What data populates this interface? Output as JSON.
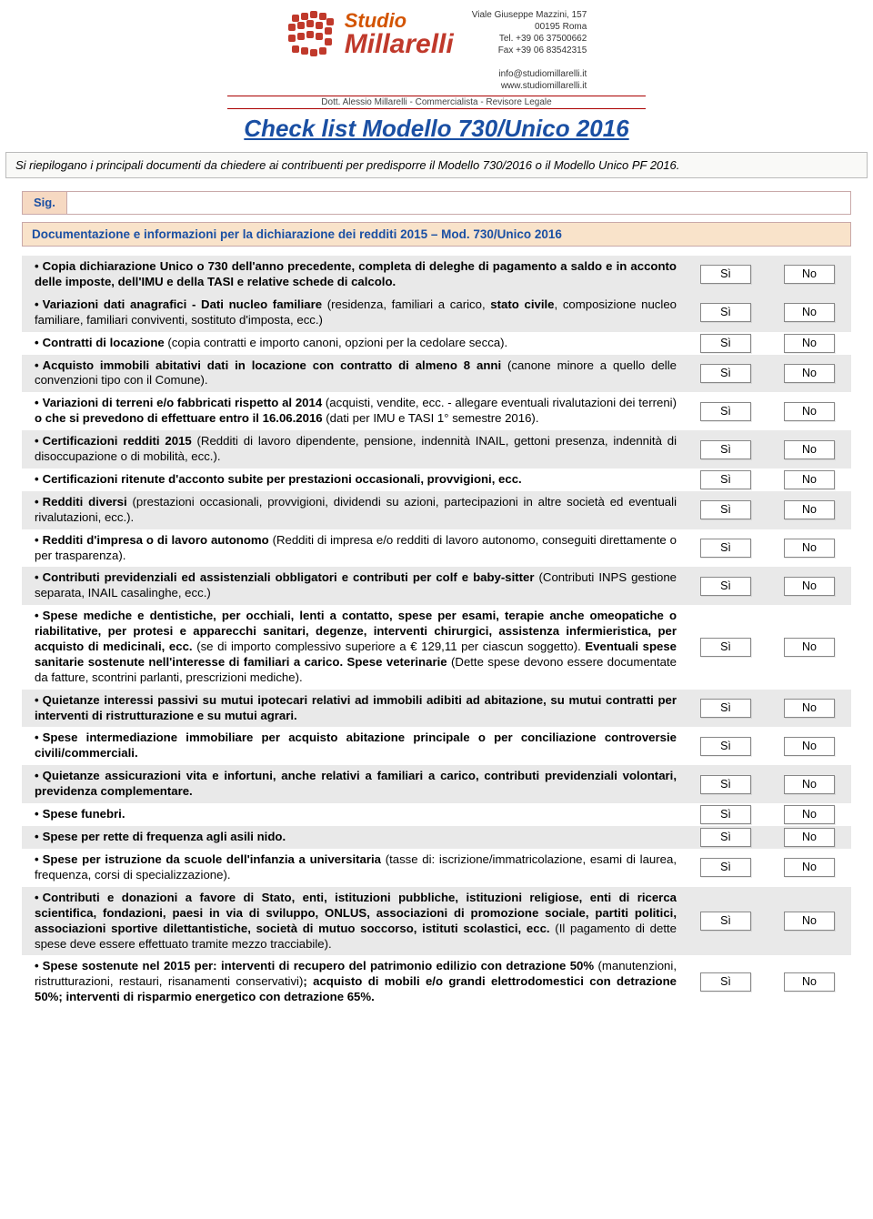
{
  "header": {
    "logo_line1": "Studio",
    "logo_line2": "Millarelli",
    "contact_lines": [
      "Viale Giuseppe Mazzini, 157",
      "00195 Roma",
      "Tel. +39 06 37500662",
      "Fax +39 06 83542315",
      "",
      "info@studiomillarelli.it",
      "www.studiomillarelli.it"
    ],
    "subline": "Dott. Alessio Millarelli - Commercialista - Revisore Legale"
  },
  "title": "Check list Modello 730/Unico 2016",
  "intro": "Si riepilogano i principali documenti da chiedere ai contribuenti per predisporre il Modello 730/2016 o il Modello Unico PF 2016.",
  "sig_label": "Sig.",
  "section_header": "Documentazione e informazioni per la dichiarazione dei redditi 2015 – Mod. 730/Unico 2016",
  "yes": "Sì",
  "no": "No",
  "colors": {
    "title": "#1a4fa3",
    "header_bg": "#f9e3ca",
    "sig_bg": "#f6d9c2",
    "shade": "#e9e9e9",
    "border": "#c9a9a9",
    "logo_orange": "#d35400",
    "logo_red": "#c0392b"
  },
  "rows": [
    {
      "shaded": true,
      "html": "<b>Copia dichiarazione Unico o 730 dell'anno precedente, completa di deleghe di pagamento a saldo e in acconto delle imposte, dell'IMU e della TASI e relative schede di calcolo.</b>"
    },
    {
      "shaded": true,
      "html": "<b>Variazioni dati anagrafici - Dati nucleo familiare</b> (residenza, familiari a carico, <b>stato civile</b>, composizione nucleo familiare, familiari conviventi, sostituto d'imposta, ecc.)"
    },
    {
      "shaded": false,
      "html": "<b>Contratti di locazione</b> (copia contratti e importo canoni, opzioni per la cedolare secca)."
    },
    {
      "shaded": true,
      "html": "<b>Acquisto immobili abitativi dati in locazione con contratto di almeno 8 anni</b> (canone minore a quello delle convenzioni tipo con il Comune)."
    },
    {
      "shaded": false,
      "html": "<b>Variazioni di terreni e/o fabbricati rispetto al 2014</b> (acquisti, vendite, ecc. - allegare eventuali rivalutazioni dei terreni) <b>o che si prevedono di effettuare entro il 16.06.2016</b> (dati per IMU e TASI 1° semestre 2016)."
    },
    {
      "shaded": true,
      "html": "<b>Certificazioni redditi 2015</b> (Redditi di lavoro dipendente, pensione, indennità INAIL, gettoni presenza,  indennità di disoccupazione o di mobilità, ecc.)."
    },
    {
      "shaded": false,
      "html": "<b>Certificazioni ritenute d'acconto subite per prestazioni occasionali, provvigioni, ecc.</b>"
    },
    {
      "shaded": true,
      "html": "<b>Redditi diversi</b> (prestazioni occasionali, provvigioni, dividendi su azioni, partecipazioni in altre società ed eventuali rivalutazioni, ecc.)."
    },
    {
      "shaded": false,
      "html": "<b>Redditi d'impresa o di lavoro autonomo</b> (Redditi di impresa e/o redditi di lavoro autonomo, conseguiti direttamente o per trasparenza)."
    },
    {
      "shaded": true,
      "html": "<b>Contributi previdenziali ed assistenziali obbligatori e contributi per colf e baby-sitter</b> (Contributi INPS gestione separata, INAIL casalinghe, ecc.)"
    },
    {
      "shaded": false,
      "html": "<b>Spese mediche e dentistiche, per occhiali, lenti a contatto, spese per esami, terapie anche omeopatiche o riabilitative, per protesi e apparecchi sanitari, degenze, interventi chirurgici, assistenza infermieristica, per acquisto di medicinali, ecc.</b> (se di importo complessivo superiore a € 129,11 per ciascun soggetto). <b>Eventuali spese sanitarie sostenute nell'interesse di familiari a carico. Spese veterinarie</b> (Dette spese devono essere documentate da fatture, scontrini parlanti, prescrizioni mediche)."
    },
    {
      "shaded": true,
      "html": "<b>Quietanze interessi passivi su mutui ipotecari relativi ad immobili adibiti ad abitazione, su mutui contratti per interventi di ristrutturazione e su mutui agrari.</b>"
    },
    {
      "shaded": false,
      "html": "<b>Spese intermediazione immobiliare per acquisto abitazione principale o per conciliazione controversie civili/commerciali.</b>"
    },
    {
      "shaded": true,
      "html": "<b>Quietanze assicurazioni vita e infortuni, anche relativi a familiari a carico, contributi previdenziali volontari, previdenza complementare.</b>"
    },
    {
      "shaded": false,
      "html": "<b>Spese funebri.</b>"
    },
    {
      "shaded": true,
      "html": "<b>Spese per rette di frequenza agli asili nido.</b>"
    },
    {
      "shaded": false,
      "html": "<b>Spese per istruzione da scuole dell'infanzia a universitaria</b> (tasse di: iscrizione/immatricolazione, esami di laurea, frequenza, corsi di specializzazione)."
    },
    {
      "shaded": true,
      "html": "<b>Contributi e donazioni a favore di Stato, enti, istituzioni pubbliche, istituzioni religiose, enti di ricerca scientifica, fondazioni, paesi in via di sviluppo, ONLUS, associazioni di promozione sociale, partiti politici, associazioni sportive dilettantistiche, società di mutuo soccorso, istituti scolastici, ecc.</b> (Il pagamento di dette spese deve essere effettuato tramite mezzo tracciabile)."
    },
    {
      "shaded": false,
      "html": "<b>Spese sostenute nel 2015 per: interventi di recupero del patrimonio edilizio con detrazione 50%</b> (manutenzioni, ristrutturazioni, restauri, risanamenti conservativi)<b>; acquisto di mobili e/o grandi elettrodomestici con detrazione 50%; interventi di risparmio energetico con detrazione 65%.</b>"
    }
  ]
}
